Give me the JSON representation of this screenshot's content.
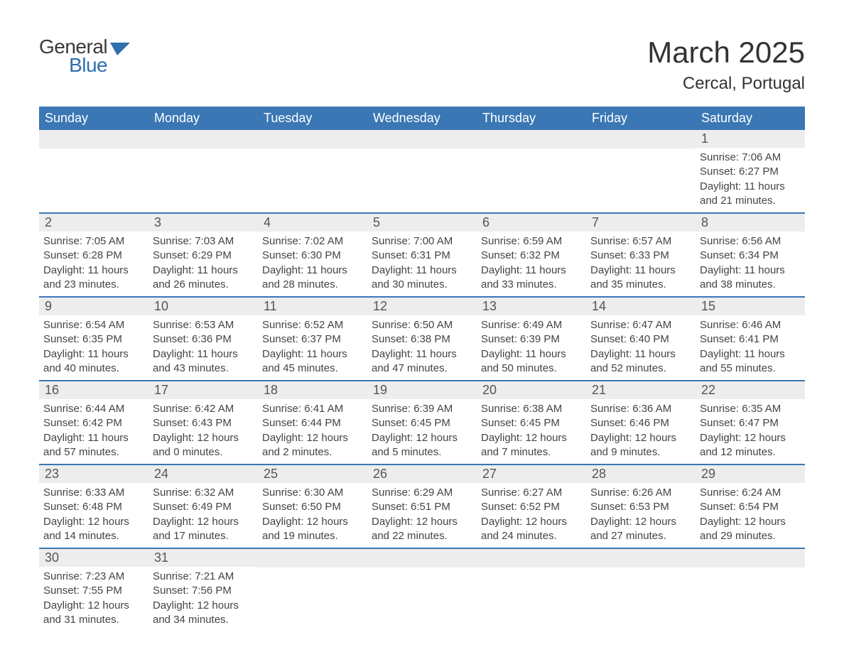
{
  "brand": {
    "word1": "General",
    "word2": "Blue",
    "icon_color": "#2f6fae"
  },
  "title": "March 2025",
  "location": "Cercal, Portugal",
  "colors": {
    "header_bg": "#3a77b4",
    "header_text": "#ffffff",
    "strip_bg": "#ededed",
    "text": "#333333",
    "row_border": "#3a77b4"
  },
  "fonts": {
    "title_size": 42,
    "location_size": 24,
    "dayheader_size": 18,
    "daynum_size": 18,
    "body_size": 15
  },
  "day_names": [
    "Sunday",
    "Monday",
    "Tuesday",
    "Wednesday",
    "Thursday",
    "Friday",
    "Saturday"
  ],
  "weeks": [
    [
      null,
      null,
      null,
      null,
      null,
      null,
      {
        "n": "1",
        "sunrise": "7:06 AM",
        "sunset": "6:27 PM",
        "day_h": "11",
        "day_m": "21"
      }
    ],
    [
      {
        "n": "2",
        "sunrise": "7:05 AM",
        "sunset": "6:28 PM",
        "day_h": "11",
        "day_m": "23"
      },
      {
        "n": "3",
        "sunrise": "7:03 AM",
        "sunset": "6:29 PM",
        "day_h": "11",
        "day_m": "26"
      },
      {
        "n": "4",
        "sunrise": "7:02 AM",
        "sunset": "6:30 PM",
        "day_h": "11",
        "day_m": "28"
      },
      {
        "n": "5",
        "sunrise": "7:00 AM",
        "sunset": "6:31 PM",
        "day_h": "11",
        "day_m": "30"
      },
      {
        "n": "6",
        "sunrise": "6:59 AM",
        "sunset": "6:32 PM",
        "day_h": "11",
        "day_m": "33"
      },
      {
        "n": "7",
        "sunrise": "6:57 AM",
        "sunset": "6:33 PM",
        "day_h": "11",
        "day_m": "35"
      },
      {
        "n": "8",
        "sunrise": "6:56 AM",
        "sunset": "6:34 PM",
        "day_h": "11",
        "day_m": "38"
      }
    ],
    [
      {
        "n": "9",
        "sunrise": "6:54 AM",
        "sunset": "6:35 PM",
        "day_h": "11",
        "day_m": "40"
      },
      {
        "n": "10",
        "sunrise": "6:53 AM",
        "sunset": "6:36 PM",
        "day_h": "11",
        "day_m": "43"
      },
      {
        "n": "11",
        "sunrise": "6:52 AM",
        "sunset": "6:37 PM",
        "day_h": "11",
        "day_m": "45"
      },
      {
        "n": "12",
        "sunrise": "6:50 AM",
        "sunset": "6:38 PM",
        "day_h": "11",
        "day_m": "47"
      },
      {
        "n": "13",
        "sunrise": "6:49 AM",
        "sunset": "6:39 PM",
        "day_h": "11",
        "day_m": "50"
      },
      {
        "n": "14",
        "sunrise": "6:47 AM",
        "sunset": "6:40 PM",
        "day_h": "11",
        "day_m": "52"
      },
      {
        "n": "15",
        "sunrise": "6:46 AM",
        "sunset": "6:41 PM",
        "day_h": "11",
        "day_m": "55"
      }
    ],
    [
      {
        "n": "16",
        "sunrise": "6:44 AM",
        "sunset": "6:42 PM",
        "day_h": "11",
        "day_m": "57"
      },
      {
        "n": "17",
        "sunrise": "6:42 AM",
        "sunset": "6:43 PM",
        "day_h": "12",
        "day_m": "0"
      },
      {
        "n": "18",
        "sunrise": "6:41 AM",
        "sunset": "6:44 PM",
        "day_h": "12",
        "day_m": "2"
      },
      {
        "n": "19",
        "sunrise": "6:39 AM",
        "sunset": "6:45 PM",
        "day_h": "12",
        "day_m": "5"
      },
      {
        "n": "20",
        "sunrise": "6:38 AM",
        "sunset": "6:45 PM",
        "day_h": "12",
        "day_m": "7"
      },
      {
        "n": "21",
        "sunrise": "6:36 AM",
        "sunset": "6:46 PM",
        "day_h": "12",
        "day_m": "9"
      },
      {
        "n": "22",
        "sunrise": "6:35 AM",
        "sunset": "6:47 PM",
        "day_h": "12",
        "day_m": "12"
      }
    ],
    [
      {
        "n": "23",
        "sunrise": "6:33 AM",
        "sunset": "6:48 PM",
        "day_h": "12",
        "day_m": "14"
      },
      {
        "n": "24",
        "sunrise": "6:32 AM",
        "sunset": "6:49 PM",
        "day_h": "12",
        "day_m": "17"
      },
      {
        "n": "25",
        "sunrise": "6:30 AM",
        "sunset": "6:50 PM",
        "day_h": "12",
        "day_m": "19"
      },
      {
        "n": "26",
        "sunrise": "6:29 AM",
        "sunset": "6:51 PM",
        "day_h": "12",
        "day_m": "22"
      },
      {
        "n": "27",
        "sunrise": "6:27 AM",
        "sunset": "6:52 PM",
        "day_h": "12",
        "day_m": "24"
      },
      {
        "n": "28",
        "sunrise": "6:26 AM",
        "sunset": "6:53 PM",
        "day_h": "12",
        "day_m": "27"
      },
      {
        "n": "29",
        "sunrise": "6:24 AM",
        "sunset": "6:54 PM",
        "day_h": "12",
        "day_m": "29"
      }
    ],
    [
      {
        "n": "30",
        "sunrise": "7:23 AM",
        "sunset": "7:55 PM",
        "day_h": "12",
        "day_m": "31"
      },
      {
        "n": "31",
        "sunrise": "7:21 AM",
        "sunset": "7:56 PM",
        "day_h": "12",
        "day_m": "34"
      },
      null,
      null,
      null,
      null,
      null
    ]
  ],
  "labels": {
    "sunrise_prefix": "Sunrise: ",
    "sunset_prefix": "Sunset: ",
    "daylight_prefix": "Daylight: ",
    "hours_word": " hours",
    "and_word": "and ",
    "minutes_word": " minutes."
  }
}
